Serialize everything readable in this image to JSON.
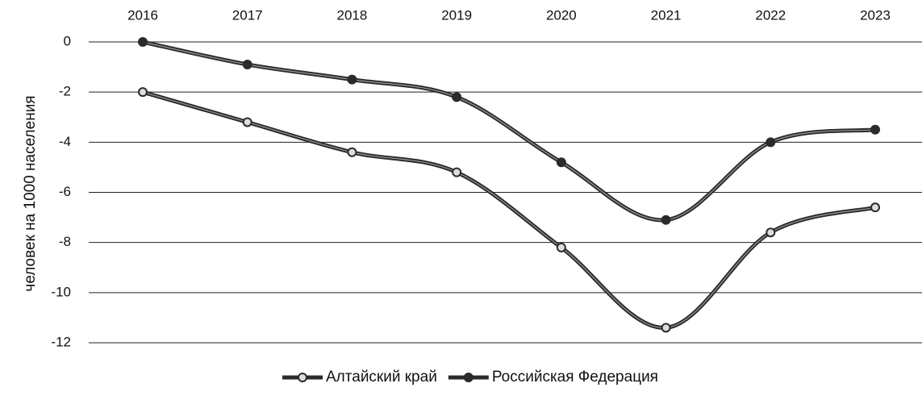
{
  "chart_data": {
    "type": "line",
    "ylabel": "человек на 1000 населения",
    "categories": [
      "2016",
      "2017",
      "2018",
      "2019",
      "2020",
      "2021",
      "2022",
      "2023"
    ],
    "series": [
      {
        "name": "Алтайский край",
        "color": "#2b2b2b",
        "marker": "hollow",
        "values": [
          -2,
          -3.2,
          -4.4,
          -5.2,
          -8.2,
          -11.4,
          -7.6,
          -6.6
        ]
      },
      {
        "name": "Российская Федерация",
        "color": "#2b2b2b",
        "marker": "filled",
        "values": [
          0,
          -0.9,
          -1.5,
          -2.2,
          -4.8,
          -7.1,
          -4.0,
          -3.5
        ]
      }
    ],
    "ylim": [
      -12,
      0
    ],
    "yticks": [
      0,
      -2,
      -4,
      -6,
      -8,
      -10,
      -12
    ],
    "grid": true,
    "smooth": true,
    "legend": "bottom",
    "xaxis_position": "top"
  }
}
